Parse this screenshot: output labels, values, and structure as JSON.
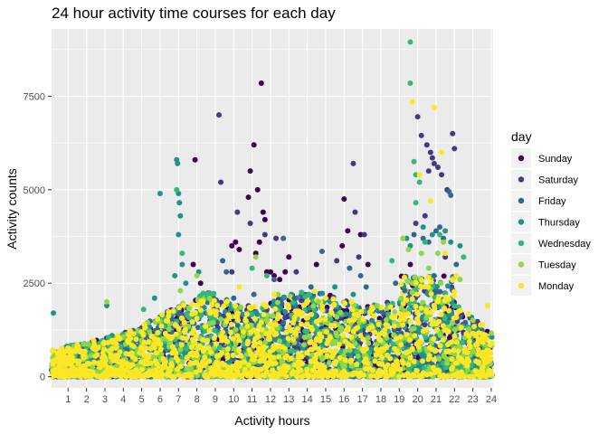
{
  "chart_data": {
    "type": "scatter",
    "title": "24 hour activity time courses for each day",
    "xlabel": "Activity hours",
    "ylabel": "Activity counts",
    "xlim": [
      0.1,
      24.1
    ],
    "ylim": [
      -300,
      9300
    ],
    "x_ticks": [
      1,
      2,
      3,
      4,
      5,
      6,
      7,
      8,
      9,
      10,
      11,
      12,
      13,
      14,
      15,
      16,
      17,
      18,
      19,
      20,
      21,
      22,
      23,
      24
    ],
    "x_tick_labels": [
      "1",
      "2",
      "3",
      "4",
      "5",
      "6",
      "7",
      "8",
      "9",
      "10",
      "11",
      "12",
      "13",
      "14",
      "15",
      "16",
      "17",
      "18",
      "19",
      "20",
      "21",
      "22",
      "23",
      "24"
    ],
    "y_ticks": [
      0,
      2500,
      5000,
      7500
    ],
    "y_tick_labels": [
      "0",
      "2500",
      "5000",
      "7500"
    ],
    "grid": true,
    "legend": {
      "title": "day",
      "placement": "right",
      "entries": [
        "Sunday",
        "Saturday",
        "Friday",
        "Thursday",
        "Wednesday",
        "Tuesday",
        "Monday"
      ]
    },
    "colors": {
      "Sunday": "#440154",
      "Saturday": "#443983",
      "Friday": "#31688e",
      "Thursday": "#21918c",
      "Wednesday": "#35b779",
      "Tuesday": "#90d743",
      "Monday": "#fde725",
      "panel_background": "#ebebeb",
      "grid_line": "#ffffff"
    },
    "series": [
      {
        "name": "Sunday",
        "points": [
          [
            9.9,
            3500
          ],
          [
            10.1,
            3600
          ],
          [
            10.3,
            3400
          ],
          [
            10.8,
            4800
          ],
          [
            10.9,
            5500
          ],
          [
            11.1,
            6200
          ],
          [
            11.3,
            5000
          ],
          [
            11.5,
            7850
          ],
          [
            11.4,
            3600
          ],
          [
            11.6,
            4400
          ],
          [
            11.7,
            4200
          ],
          [
            11.2,
            3300
          ],
          [
            12.0,
            2800
          ],
          [
            12.2,
            2700
          ],
          [
            12.5,
            2600
          ],
          [
            13.0,
            3200
          ],
          [
            15.9,
            3500
          ],
          [
            16.2,
            3900
          ],
          [
            16.9,
            3800
          ],
          [
            17.3,
            3000
          ],
          [
            7.9,
            5800
          ],
          [
            7.8,
            3000
          ],
          [
            8.2,
            2500
          ],
          [
            16.0,
            4750
          ],
          [
            19.6,
            3000
          ],
          [
            11.8,
            2800
          ],
          [
            12.8,
            2800
          ],
          [
            14.5,
            3000
          ]
        ]
      },
      {
        "name": "Saturday",
        "points": [
          [
            9.2,
            7000
          ],
          [
            9.3,
            5200
          ],
          [
            9.9,
            2800
          ],
          [
            10.2,
            4400
          ],
          [
            10.9,
            4100
          ],
          [
            11.7,
            3800
          ],
          [
            12.3,
            3700
          ],
          [
            13.4,
            2800
          ],
          [
            16.5,
            5700
          ],
          [
            16.6,
            4400
          ],
          [
            16.8,
            3200
          ],
          [
            20.0,
            6950
          ],
          [
            20.2,
            6450
          ],
          [
            20.5,
            6200
          ],
          [
            20.7,
            6000
          ],
          [
            20.8,
            5850
          ],
          [
            20.9,
            5700
          ],
          [
            21.1,
            5600
          ],
          [
            21.3,
            5400
          ],
          [
            21.6,
            5000
          ],
          [
            21.9,
            6500
          ],
          [
            22.0,
            6100
          ],
          [
            21.5,
            3200
          ],
          [
            20.4,
            4300
          ],
          [
            20.6,
            5500
          ],
          [
            19.9,
            4100
          ],
          [
            15.6,
            3100
          ],
          [
            17.1,
            3800
          ]
        ]
      },
      {
        "name": "Friday",
        "points": [
          [
            9.4,
            3100
          ],
          [
            9.6,
            2800
          ],
          [
            10.0,
            2100
          ],
          [
            11.1,
            2200
          ],
          [
            12.2,
            2600
          ],
          [
            13.3,
            2100
          ],
          [
            14.2,
            2400
          ],
          [
            14.8,
            3350
          ],
          [
            16.3,
            2900
          ],
          [
            16.9,
            2700
          ],
          [
            17.2,
            2400
          ],
          [
            19.8,
            3800
          ],
          [
            20.3,
            3700
          ],
          [
            20.6,
            3600
          ],
          [
            21.0,
            3900
          ],
          [
            21.2,
            4000
          ],
          [
            21.4,
            3700
          ],
          [
            21.7,
            4950
          ],
          [
            21.8,
            4850
          ],
          [
            22.1,
            3000
          ],
          [
            18.8,
            2500
          ],
          [
            20.9,
            2700
          ],
          [
            19.3,
            2300
          ],
          [
            12.7,
            3700
          ]
        ]
      },
      {
        "name": "Thursday",
        "points": [
          [
            0.2,
            1700
          ],
          [
            3.1,
            1900
          ],
          [
            5.7,
            2100
          ],
          [
            6.0,
            4900
          ],
          [
            6.9,
            5800
          ],
          [
            6.95,
            5700
          ],
          [
            7.0,
            4900
          ],
          [
            7.05,
            4650
          ],
          [
            7.1,
            4300
          ],
          [
            7.0,
            3800
          ],
          [
            7.2,
            3000
          ],
          [
            6.8,
            2700
          ],
          [
            7.4,
            2500
          ],
          [
            8.1,
            2800
          ],
          [
            19.4,
            3700
          ],
          [
            19.6,
            3500
          ],
          [
            20.3,
            4000
          ],
          [
            20.8,
            3800
          ],
          [
            21.5,
            3900
          ],
          [
            21.8,
            3600
          ],
          [
            22.3,
            3500
          ],
          [
            15.5,
            2400
          ],
          [
            16.5,
            2200
          ]
        ]
      },
      {
        "name": "Wednesday",
        "points": [
          [
            19.6,
            8950
          ],
          [
            19.6,
            7850
          ],
          [
            19.8,
            5750
          ],
          [
            19.9,
            5400
          ],
          [
            20.1,
            5200
          ],
          [
            19.9,
            4650
          ],
          [
            20.4,
            3600
          ],
          [
            21.2,
            3800
          ],
          [
            6.9,
            5000
          ],
          [
            7.2,
            3300
          ],
          [
            5.1,
            1800
          ],
          [
            11.0,
            2900
          ],
          [
            11.8,
            2700
          ],
          [
            14.1,
            2200
          ],
          [
            18.6,
            3100
          ],
          [
            22.5,
            3200
          ]
        ]
      },
      {
        "name": "Tuesday",
        "points": [
          [
            3.1,
            2000
          ],
          [
            7.1,
            2300
          ],
          [
            8.0,
            2700
          ],
          [
            11.2,
            3200
          ],
          [
            12.4,
            2200
          ],
          [
            19.2,
            3700
          ],
          [
            19.5,
            3400
          ],
          [
            20.2,
            3300
          ],
          [
            20.6,
            2900
          ],
          [
            21.1,
            3300
          ],
          [
            21.4,
            3600
          ],
          [
            22.3,
            2600
          ],
          [
            17.8,
            1900
          ],
          [
            14.6,
            2000
          ]
        ]
      },
      {
        "name": "Monday",
        "points": [
          [
            19.7,
            7350
          ],
          [
            20.9,
            7200
          ],
          [
            20.1,
            5400
          ],
          [
            20.7,
            4700
          ],
          [
            21.3,
            6000
          ],
          [
            21.5,
            3300
          ],
          [
            12.2,
            2200
          ],
          [
            22.1,
            2700
          ],
          [
            10.3,
            2400
          ],
          [
            15.0,
            2100
          ],
          [
            23.8,
            1900
          ],
          [
            16.4,
            2000
          ]
        ]
      }
    ]
  }
}
